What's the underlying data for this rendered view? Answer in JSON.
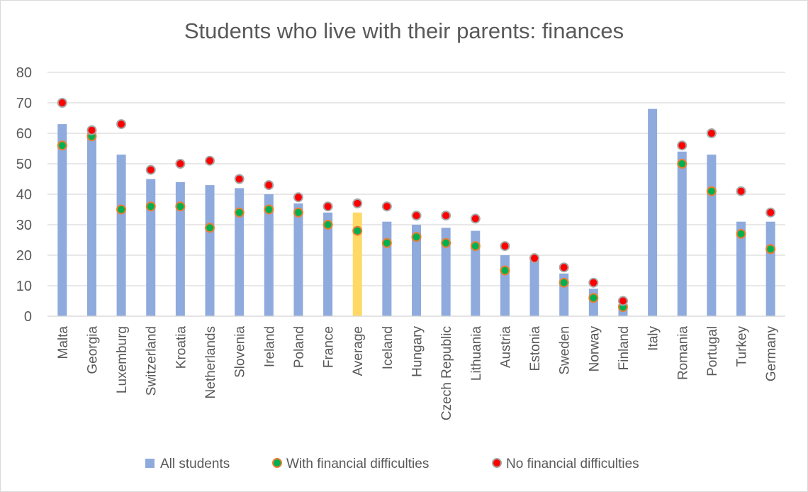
{
  "chart_data": {
    "type": "bar",
    "title": "Students who live with their parents: finances",
    "xlabel": "",
    "ylabel": "",
    "ylim": [
      0,
      80
    ],
    "yticks": [
      0,
      10,
      20,
      30,
      40,
      50,
      60,
      70,
      80
    ],
    "grid": true,
    "legend_position": "bottom",
    "categories": [
      "Malta",
      "Georgia",
      "Luxemburg",
      "Switzerland",
      "Kroatia",
      "Netherlands",
      "Slovenia",
      "Ireland",
      "Poland",
      "France",
      "Average",
      "Iceland",
      "Hungary",
      "Czech Republic",
      "Lithuania",
      "Austria",
      "Estonia",
      "Sweden",
      "Norway",
      "Finland",
      "Italy",
      "Romania",
      "Portugal",
      "Turkey",
      "Germany"
    ],
    "highlight_category": "Average",
    "series": [
      {
        "name": "All students",
        "kind": "bar",
        "color": "#8faadc",
        "highlight_color": "#ffd966",
        "values": [
          63,
          60,
          53,
          45,
          44,
          43,
          42,
          40,
          37,
          34,
          34,
          31,
          30,
          29,
          28,
          20,
          19,
          14,
          9,
          4,
          68,
          54,
          53,
          31,
          31
        ]
      },
      {
        "name": "With financial difficulties",
        "kind": "marker",
        "color": "#00b050",
        "edge": "#ed7d31",
        "values": [
          56,
          59,
          35,
          36,
          36,
          29,
          34,
          35,
          34,
          30,
          28,
          24,
          26,
          24,
          23,
          15,
          19,
          11,
          6,
          3,
          null,
          50,
          41,
          27,
          22
        ]
      },
      {
        "name": "No financial difficulties",
        "kind": "marker",
        "color": "#ff0000",
        "edge": "#a6a6a6",
        "values": [
          70,
          61,
          63,
          48,
          50,
          51,
          45,
          43,
          39,
          36,
          37,
          36,
          33,
          33,
          32,
          23,
          19,
          16,
          11,
          5,
          null,
          56,
          60,
          41,
          34
        ]
      }
    ]
  }
}
